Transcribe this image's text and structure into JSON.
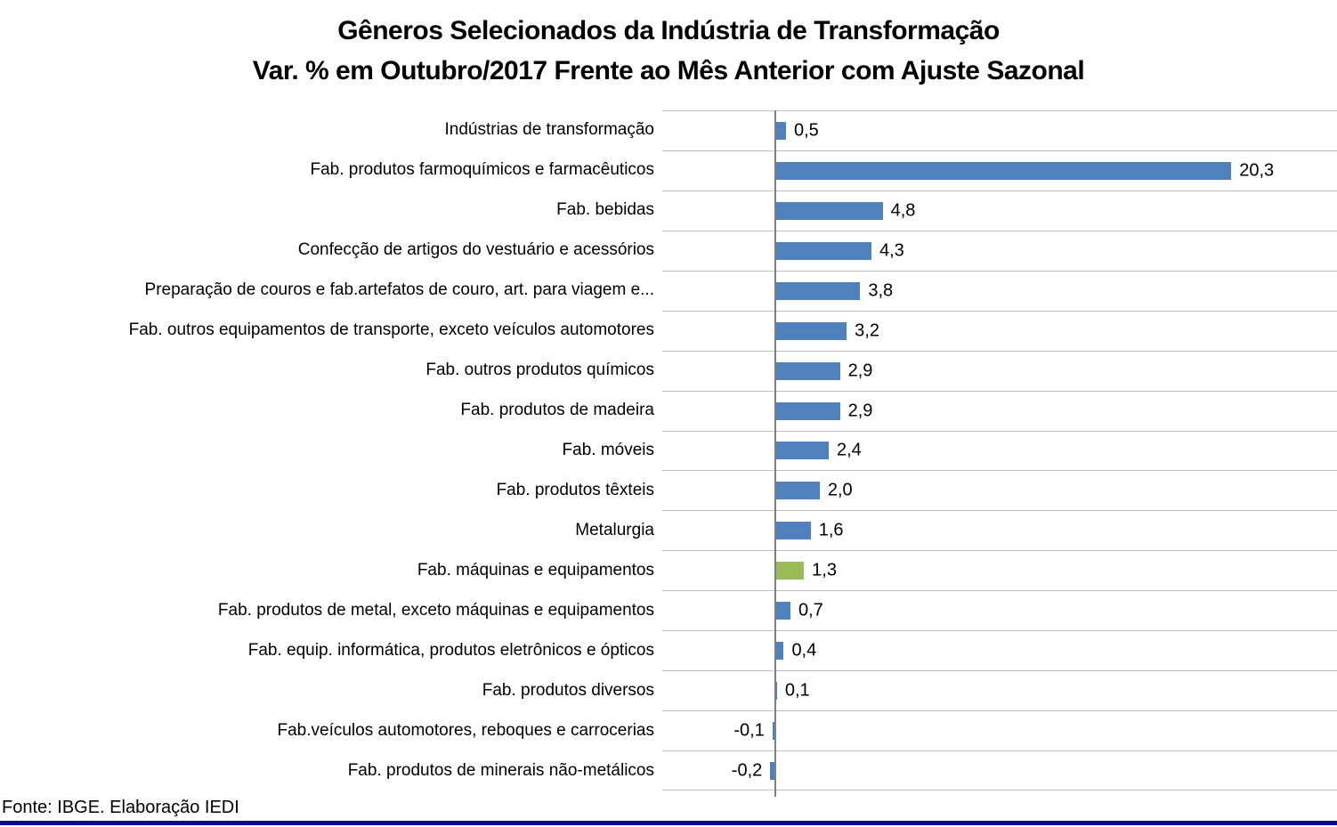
{
  "chart_data": {
    "type": "bar",
    "orientation": "horizontal",
    "title_line1": "Gêneros Selecionados da Indústria de Transformação",
    "title_line2": "Var. % em Outubro/2017 Frente ao Mês Anterior com Ajuste Sazonal",
    "categories": [
      "Indústrias de transformação",
      "Fab. produtos farmoquímicos e farmacêuticos",
      "Fab. bebidas",
      "Confecção de artigos do vestuário e acessórios",
      "Preparação de couros e fab.artefatos de couro, art. para viagem e...",
      "Fab. outros equipamentos de transporte, exceto veículos automotores",
      "Fab. outros produtos químicos",
      "Fab. produtos de madeira",
      "Fab. móveis",
      "Fab. produtos têxteis",
      "Metalurgia",
      "Fab. máquinas e equipamentos",
      "Fab. produtos de metal, exceto máquinas e equipamentos",
      "Fab. equip. informática, produtos eletrônicos e ópticos",
      "Fab. produtos diversos",
      "Fab.veículos automotores, reboques e carrocerias",
      "Fab. produtos de minerais não-metálicos"
    ],
    "values": [
      0.5,
      20.3,
      4.8,
      4.3,
      3.8,
      3.2,
      2.9,
      2.9,
      2.4,
      2.0,
      1.6,
      1.3,
      0.7,
      0.4,
      0.1,
      -0.1,
      -0.2
    ],
    "value_labels": [
      "0,5",
      "20,3",
      "4,8",
      "4,3",
      "3,8",
      "3,2",
      "2,9",
      "2,9",
      "2,4",
      "2,0",
      "1,6",
      "1,3",
      "0,7",
      "0,4",
      "0,1",
      "-0,1",
      "-0,2"
    ],
    "xlim": [
      -5,
      25
    ],
    "grid": "horizontal-row-separators",
    "legend": "none",
    "bar_color": "#4F81BD",
    "highlight": {
      "index": 11,
      "color": "#9BBB59"
    },
    "axis_color": "#7F7F7F",
    "gridline_color": "#BFBFBF"
  },
  "footer": {
    "source_text": "Fonte: IBGE. Elaboração IEDI",
    "rule_color": "#0A0A8A"
  }
}
